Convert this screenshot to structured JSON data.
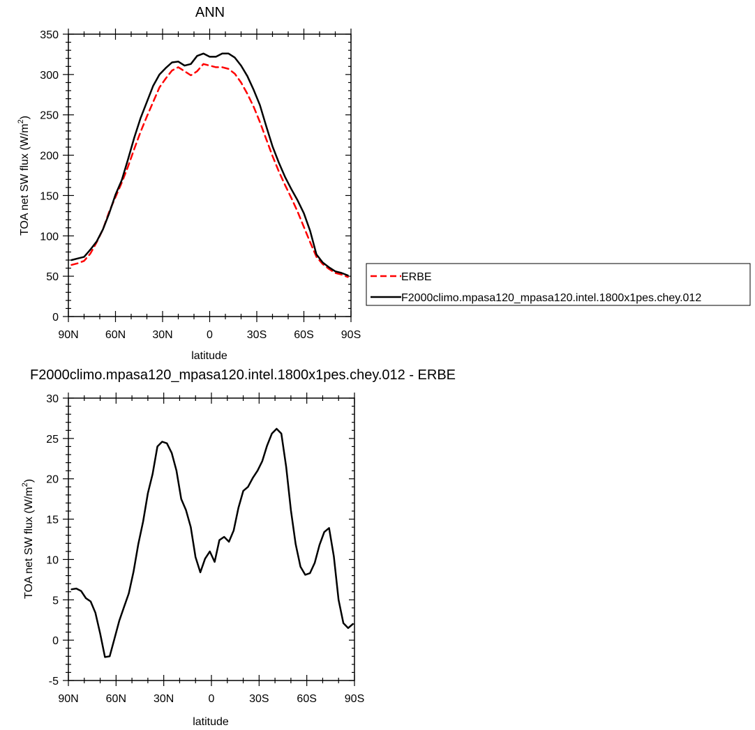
{
  "chart_data": [
    {
      "type": "line",
      "title": "ANN",
      "xlabel": "latitude",
      "ylabel": "TOA net SW flux (W/m",
      "ylabel_sup": "2",
      "ylabel_close": ")",
      "xlim": [
        90,
        -90
      ],
      "ylim": [
        0,
        350
      ],
      "y_ticks": [
        0,
        50,
        100,
        150,
        200,
        250,
        300,
        350
      ],
      "x_ticks": [
        90,
        60,
        30,
        0,
        -30,
        -60,
        -90
      ],
      "x_tick_labels": [
        "90N",
        "60N",
        "30N",
        "0",
        "30S",
        "60S",
        "90S"
      ],
      "legend": {
        "placement": "right",
        "boxed": true
      },
      "series": [
        {
          "name": "ERBE",
          "color": "#ff0000",
          "dash": "dashed",
          "x": [
            88,
            84,
            80,
            76,
            72,
            68,
            64,
            60,
            56,
            52,
            48,
            44,
            40,
            36,
            32,
            28,
            24,
            20,
            16,
            12,
            8,
            4,
            0,
            -4,
            -8,
            -12,
            -16,
            -20,
            -24,
            -28,
            -32,
            -36,
            -40,
            -44,
            -48,
            -52,
            -56,
            -60,
            -64,
            -68,
            -72,
            -76,
            -80,
            -84,
            -88
          ],
          "values": [
            64,
            66,
            69,
            78,
            92,
            108,
            130,
            148,
            166,
            186,
            208,
            229,
            248,
            266,
            284,
            295,
            305,
            309,
            304,
            299,
            304,
            313,
            311,
            309,
            309,
            307,
            301,
            290,
            276,
            260,
            241,
            220,
            199,
            180,
            163,
            147,
            130,
            111,
            92,
            74,
            65,
            59,
            54,
            52,
            49
          ]
        },
        {
          "name": "F2000climo.mpasa120_mpasa120.intel.1800x1pes.chey.012",
          "color": "#000000",
          "dash": "solid",
          "x": [
            88,
            84,
            80,
            76,
            72,
            68,
            64,
            60,
            56,
            52,
            48,
            44,
            40,
            36,
            32,
            28,
            24,
            20,
            16,
            12,
            8,
            4,
            0,
            -4,
            -8,
            -12,
            -16,
            -20,
            -24,
            -28,
            -32,
            -36,
            -40,
            -44,
            -48,
            -52,
            -56,
            -60,
            -64,
            -68,
            -72,
            -76,
            -80,
            -84,
            -88
          ],
          "values": [
            70,
            72,
            74,
            83,
            93,
            108,
            128,
            151,
            169,
            195,
            222,
            246,
            266,
            286,
            300,
            308,
            315,
            316,
            311,
            313,
            323,
            326,
            322,
            322,
            326,
            326,
            321,
            311,
            298,
            281,
            262,
            236,
            211,
            191,
            173,
            158,
            144,
            128,
            106,
            77,
            67,
            61,
            56,
            54,
            51
          ]
        }
      ]
    },
    {
      "type": "line",
      "title": "F2000climo.mpasa120_mpasa120.intel.1800x1pes.chey.012 - ERBE",
      "xlabel": "latitude",
      "ylabel": "TOA net SW flux (W/m",
      "ylabel_sup": "2",
      "ylabel_close": ")",
      "xlim": [
        90,
        -90
      ],
      "ylim": [
        -5,
        30
      ],
      "y_ticks": [
        -5,
        0,
        5,
        10,
        15,
        20,
        25,
        30
      ],
      "x_ticks": [
        90,
        60,
        30,
        0,
        -30,
        -60,
        -90
      ],
      "x_tick_labels": [
        "90N",
        "60N",
        "30N",
        "0",
        "30S",
        "60S",
        "90S"
      ],
      "series": [
        {
          "color": "#000000",
          "dash": "solid",
          "x": [
            88,
            85,
            82,
            79,
            76,
            73,
            70,
            67,
            64,
            61,
            58,
            55,
            52,
            49,
            46,
            43,
            40,
            37,
            34,
            31,
            28,
            25,
            22,
            19,
            16,
            13,
            10,
            7,
            4,
            1,
            -2,
            -5,
            -8,
            -11,
            -14,
            -17,
            -20,
            -23,
            -26,
            -29,
            -32,
            -35,
            -38,
            -41,
            -44,
            -47,
            -50,
            -53,
            -56,
            -59,
            -62,
            -65,
            -68,
            -71,
            -74,
            -77,
            -80,
            -83,
            -86,
            -89
          ],
          "values": [
            6.3,
            6.4,
            6.1,
            5.2,
            4.8,
            3.4,
            0.8,
            -2.1,
            -2.0,
            0.2,
            2.4,
            4.1,
            5.8,
            8.5,
            11.9,
            14.7,
            18.2,
            20.6,
            24.0,
            24.6,
            24.4,
            23.2,
            21.0,
            17.5,
            16.1,
            14.0,
            10.3,
            8.4,
            10.1,
            11.0,
            9.7,
            12.4,
            12.8,
            12.2,
            13.6,
            16.4,
            18.5,
            19.0,
            20.1,
            21.0,
            22.2,
            24.1,
            25.6,
            26.2,
            25.6,
            21.5,
            16.1,
            11.9,
            9.1,
            8.1,
            8.3,
            9.6,
            11.8,
            13.4,
            13.9,
            10.4,
            5.0,
            2.1,
            1.5,
            2.0
          ]
        }
      ]
    }
  ]
}
